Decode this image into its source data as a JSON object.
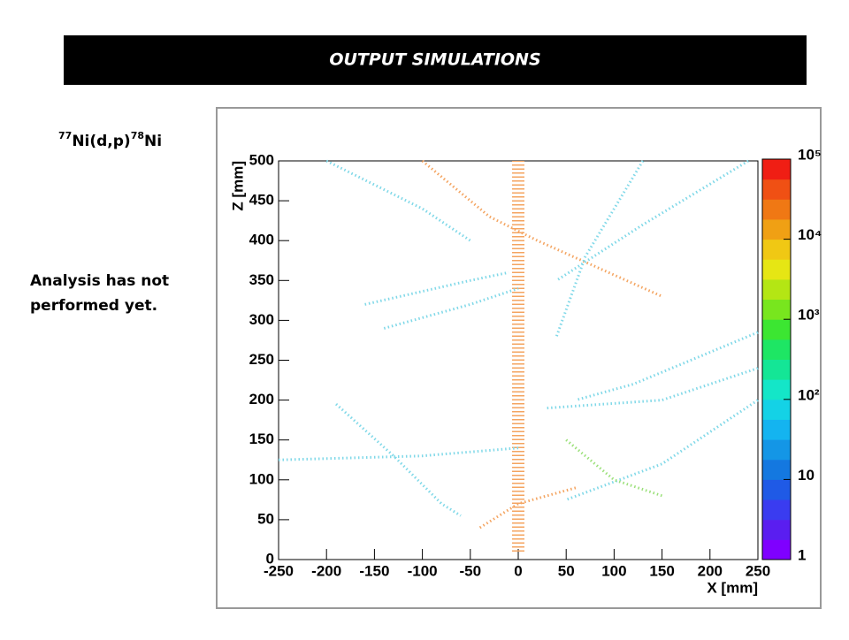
{
  "slide": {
    "title": "OUTPUT SIMULATIONS",
    "reaction": {
      "a": "77",
      "b": "Ni(d,p)",
      "c": "78",
      "d": "Ni"
    },
    "note": [
      "Analysis has not",
      "performed yet."
    ]
  },
  "chart_data": {
    "type": "scatter",
    "xlabel": "X [mm]",
    "ylabel": "Z [mm]",
    "xlim": [
      -250,
      250
    ],
    "xticks": [
      -250,
      -200,
      -150,
      -100,
      -50,
      0,
      50,
      100,
      150,
      200,
      250
    ],
    "ylim": [
      0,
      500
    ],
    "yticks": [
      0,
      50,
      100,
      150,
      200,
      250,
      300,
      350,
      400,
      450,
      500
    ],
    "log_colorbar": true,
    "clim": [
      1,
      100000
    ],
    "cticks": [
      1,
      10,
      {
        "value": 100,
        "label": "10²"
      },
      {
        "value": 1000,
        "label": "10³"
      },
      {
        "value": 10000,
        "label": "10⁴"
      },
      {
        "value": 100000,
        "label": "10⁵"
      }
    ],
    "colorscale": [
      "#7f00ff",
      "#5a1ef0",
      "#3a3cf0",
      "#1f5ae6",
      "#1478e0",
      "#1496e6",
      "#14b4f0",
      "#14d2e6",
      "#14e6c8",
      "#14e696",
      "#1ee664",
      "#3ce632",
      "#78e61e",
      "#b4e614",
      "#e6e614",
      "#f0c814",
      "#f0a014",
      "#f07814",
      "#f05014",
      "#f01e14"
    ],
    "series": [
      {
        "color": "#f4a460",
        "x": [
          0,
          0
        ],
        "values": [
          10,
          500
        ]
      },
      {
        "color": "#7fd8e8",
        "x": [
          -250,
          -100,
          0
        ],
        "values": [
          125,
          130,
          140
        ]
      },
      {
        "color": "#7fd8e8",
        "x": [
          -190,
          -130,
          -80,
          -60
        ],
        "values": [
          195,
          130,
          70,
          55
        ]
      },
      {
        "color": "#7fd8e8",
        "x": [
          -160,
          -50,
          -10
        ],
        "values": [
          320,
          350,
          360
        ]
      },
      {
        "color": "#7fd8e8",
        "x": [
          -140,
          -50,
          0
        ],
        "values": [
          290,
          320,
          340
        ]
      },
      {
        "color": "#7fd8e8",
        "x": [
          240,
          130,
          40
        ],
        "values": [
          500,
          420,
          350
        ]
      },
      {
        "color": "#7fd8e8",
        "x": [
          250,
          150,
          30
        ],
        "values": [
          240,
          200,
          190
        ]
      },
      {
        "color": "#7fd8e8",
        "x": [
          250,
          150,
          50
        ],
        "values": [
          200,
          120,
          75
        ]
      },
      {
        "color": "#7fd8e8",
        "x": [
          250,
          120,
          60
        ],
        "values": [
          285,
          220,
          200
        ]
      },
      {
        "color": "#f4a460",
        "x": [
          -100,
          -30,
          20,
          150
        ],
        "values": [
          500,
          430,
          400,
          330
        ]
      },
      {
        "color": "#7fd8e8",
        "x": [
          130,
          70,
          40
        ],
        "values": [
          500,
          380,
          280
        ]
      },
      {
        "color": "#7fd8e8",
        "x": [
          -200,
          -100,
          -50
        ],
        "values": [
          500,
          440,
          400
        ]
      },
      {
        "color": "#9be07a",
        "x": [
          50,
          100,
          150
        ],
        "values": [
          150,
          100,
          80
        ]
      },
      {
        "color": "#f4a460",
        "x": [
          -40,
          0,
          60
        ],
        "values": [
          40,
          70,
          90
        ]
      }
    ]
  }
}
